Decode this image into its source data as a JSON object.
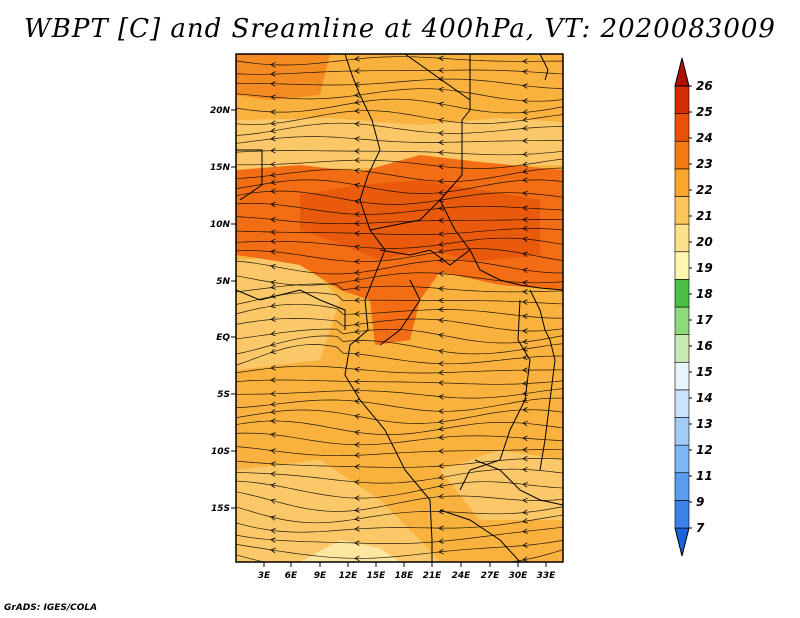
{
  "title": "WBPT [C] and Sreamline at 400hPa, VT: 2020083009",
  "credit": "GrADS: IGES/COLA",
  "map": {
    "lat_ticks": [
      "20N",
      "15N",
      "10N",
      "5N",
      "EQ",
      "5S",
      "10S",
      "15S"
    ],
    "lon_ticks": [
      "3E",
      "6E",
      "9E",
      "12E",
      "15E",
      "18E",
      "21E",
      "24E",
      "27E",
      "30E",
      "33E"
    ]
  },
  "colorbar": {
    "levels": [
      "7",
      "9",
      "11",
      "12",
      "13",
      "14",
      "15",
      "16",
      "17",
      "18",
      "19",
      "20",
      "21",
      "22",
      "23",
      "24",
      "25",
      "26"
    ],
    "colors": [
      "#1a63d9",
      "#3a82e8",
      "#5a9df0",
      "#7db6f5",
      "#a3cdf9",
      "#c9e3fc",
      "#e9f5fd",
      "#c6ecb4",
      "#8ed97e",
      "#4cbf45",
      "#fdf6b0",
      "#fde18a",
      "#fcc65c",
      "#f9a52e",
      "#f47b14",
      "#e85208",
      "#d42c04",
      "#b01002"
    ]
  },
  "field_colors": {
    "base": "#f9b23e",
    "warm_band": "#f26d14",
    "hot_band": "#ea5a0c",
    "light": "#fbc869",
    "pale": "#fde6a0"
  }
}
